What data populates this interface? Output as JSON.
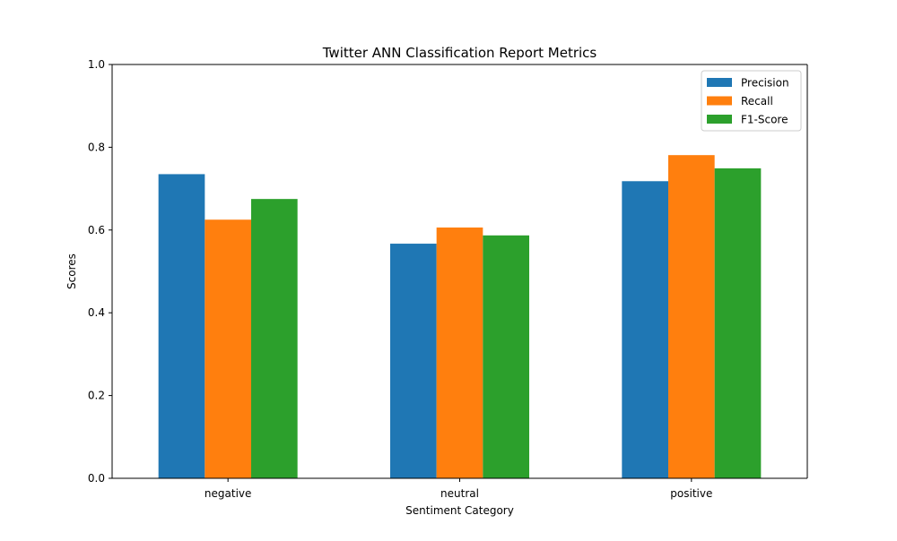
{
  "chart_data": {
    "type": "bar",
    "title": "Twitter ANN Classification Report Metrics",
    "xlabel": "Sentiment Category",
    "ylabel": "Scores",
    "categories": [
      "negative",
      "neutral",
      "positive"
    ],
    "series": [
      {
        "name": "Precision",
        "color": "#1f77b4",
        "values": [
          0.735,
          0.567,
          0.718
        ]
      },
      {
        "name": "Recall",
        "color": "#ff7f0e",
        "values": [
          0.625,
          0.606,
          0.781
        ]
      },
      {
        "name": "F1-Score",
        "color": "#2ca02c",
        "values": [
          0.675,
          0.587,
          0.749
        ]
      }
    ],
    "ylim": [
      0,
      1.0
    ],
    "yticks": [
      "0.0",
      "0.2",
      "0.4",
      "0.6",
      "0.8",
      "1.0"
    ],
    "grid": false,
    "legend_position": "top-right"
  }
}
